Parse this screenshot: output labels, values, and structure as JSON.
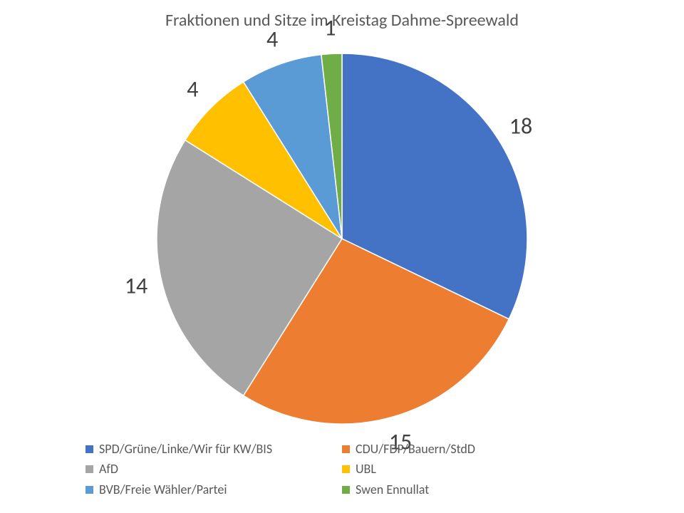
{
  "chart": {
    "type": "pie",
    "title": "Fraktionen und Sitze im Kreistag Dahme-Spreewald",
    "title_fontsize": 24,
    "title_color": "#595959",
    "background_color": "#ffffff",
    "label_fontsize": 32,
    "label_color": "#404040",
    "legend_fontsize": 18,
    "legend_color": "#595959",
    "slice_border_color": "#ffffff",
    "slice_border_width": 1.5,
    "radius": 260,
    "start_angle_deg": 0,
    "label_radius_factor": 1.14,
    "series": [
      {
        "label": "SPD/Grüne/Linke/Wir für KW/BIS",
        "value": 18,
        "color": "#4472c4"
      },
      {
        "label": "CDU/FDP/Bauern/StdD",
        "value": 15,
        "color": "#ed7d31"
      },
      {
        "label": "AfD",
        "value": 14,
        "color": "#a5a5a5"
      },
      {
        "label": "UBL",
        "value": 4,
        "color": "#ffc000"
      },
      {
        "label": "BVB/Freie Wähler/Partei",
        "value": 4,
        "color": "#5b9bd5"
      },
      {
        "label": "Swen Ennullat",
        "value": 1,
        "color": "#70ad47"
      }
    ],
    "legend_position": "bottom",
    "legend_columns": 2
  }
}
